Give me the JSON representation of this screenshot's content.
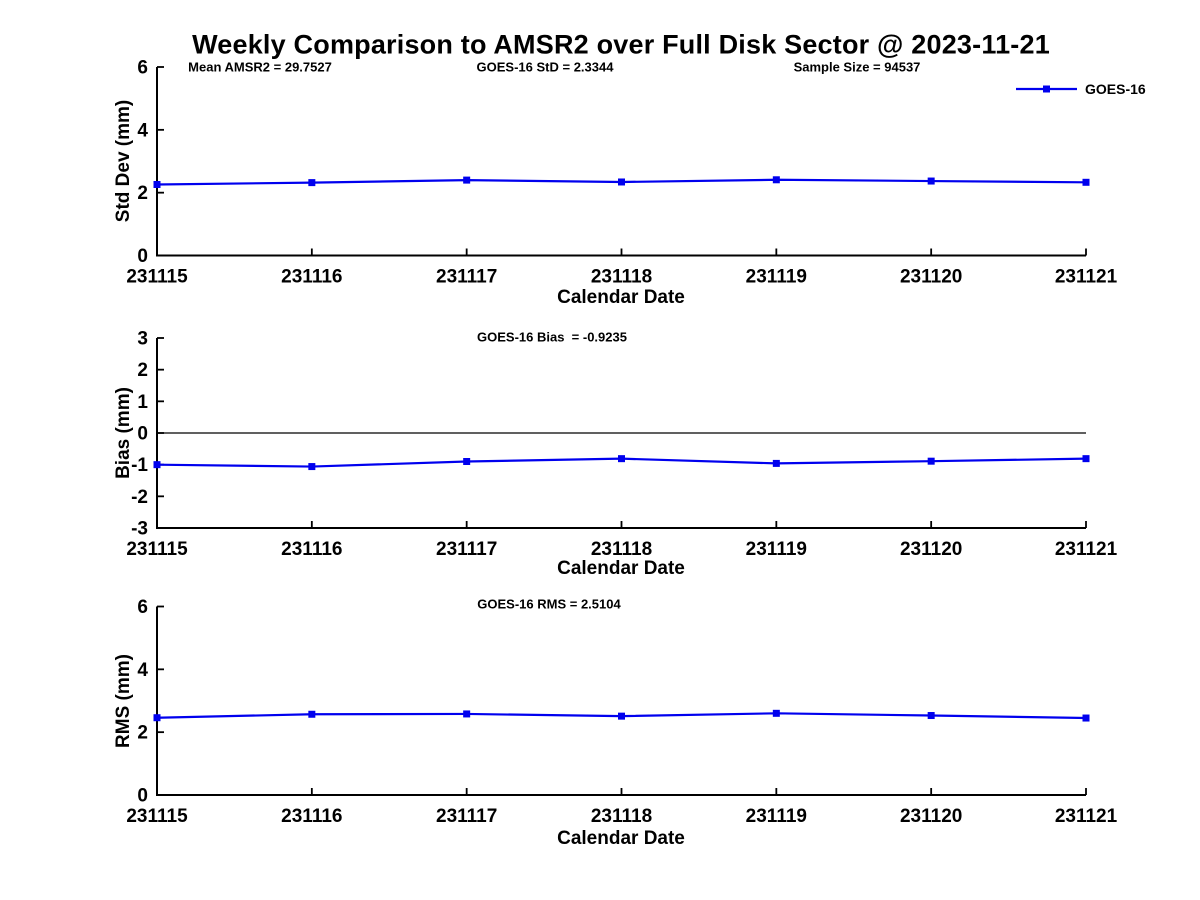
{
  "title": "Weekly Comparison to AMSR2 over Full Disk Sector @ 2023-11-21",
  "legend": {
    "label": "GOES-16",
    "position": "top-right"
  },
  "colors": {
    "line": "#0000EE",
    "axis": "#000000",
    "zero_line": "#000000",
    "text": "#000000",
    "background": "#FFFFFF"
  },
  "chart_data": [
    {
      "type": "line",
      "name": "std-dev",
      "title": "",
      "xlabel": "Calendar Date",
      "ylabel": "Std Dev (mm)",
      "ylim": [
        0,
        6
      ],
      "yticks": [
        0,
        2,
        4,
        6
      ],
      "grid": false,
      "zero_line": false,
      "categories": [
        "231115",
        "231116",
        "231117",
        "231118",
        "231119",
        "231120",
        "231121"
      ],
      "series": [
        {
          "name": "GOES-16",
          "values": [
            2.26,
            2.32,
            2.4,
            2.34,
            2.41,
            2.37,
            2.33
          ]
        }
      ],
      "annotations": [
        {
          "text": "Mean AMSR2 = 29.7527"
        },
        {
          "text": "GOES-16 StD = 2.3344"
        },
        {
          "text": "Sample Size = 94537"
        }
      ]
    },
    {
      "type": "line",
      "name": "bias",
      "title": "",
      "xlabel": "Calendar Date",
      "ylabel": "Bias (mm)",
      "ylim": [
        -3,
        3
      ],
      "yticks": [
        -3,
        -2,
        -1,
        0,
        1,
        2,
        3
      ],
      "grid": false,
      "zero_line": true,
      "categories": [
        "231115",
        "231116",
        "231117",
        "231118",
        "231119",
        "231120",
        "231121"
      ],
      "series": [
        {
          "name": "GOES-16",
          "values": [
            -1.0,
            -1.06,
            -0.9,
            -0.81,
            -0.96,
            -0.89,
            -0.81
          ]
        }
      ],
      "annotations": [
        {
          "text": "GOES-16 Bias  = -0.9235"
        }
      ]
    },
    {
      "type": "line",
      "name": "rms",
      "title": "",
      "xlabel": "Calendar Date",
      "ylabel": "RMS (mm)",
      "ylim": [
        0,
        6
      ],
      "yticks": [
        0,
        2,
        4,
        6
      ],
      "grid": false,
      "zero_line": false,
      "categories": [
        "231115",
        "231116",
        "231117",
        "231118",
        "231119",
        "231120",
        "231121"
      ],
      "series": [
        {
          "name": "GOES-16",
          "values": [
            2.46,
            2.57,
            2.58,
            2.51,
            2.6,
            2.53,
            2.45
          ]
        }
      ],
      "annotations": [
        {
          "text": "GOES-16 RMS = 2.5104"
        }
      ]
    }
  ]
}
